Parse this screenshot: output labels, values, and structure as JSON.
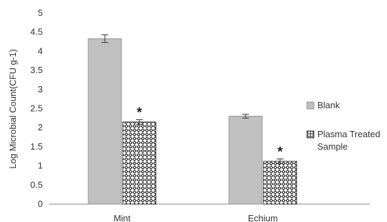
{
  "chart_data": {
    "type": "bar",
    "title": "",
    "xlabel": "",
    "ylabel": "Log Microbial Count(CFU g-1)",
    "categories": [
      "Mint",
      "Echium"
    ],
    "ylim": [
      0,
      5
    ],
    "yticks": [
      0,
      0.5,
      1,
      1.5,
      2,
      2.5,
      3,
      3.5,
      4,
      4.5,
      5
    ],
    "tick_labels": [
      "0",
      "0.5",
      "1",
      "1.5",
      "2",
      "2.5",
      "3",
      "3.5",
      "4",
      "4.5",
      "5"
    ],
    "grid": false,
    "legend_position": "right",
    "series": [
      {
        "name": "Blank",
        "values": [
          4.33,
          2.3
        ],
        "errors": [
          0.1,
          0.05
        ],
        "fill": "#c0c0c0",
        "pattern": "solid"
      },
      {
        "name": "Plasma Treated Sample",
        "values": [
          2.15,
          1.12
        ],
        "errors": [
          0.06,
          0.06
        ],
        "fill": "#ffffff",
        "pattern": "checker-lattice"
      }
    ],
    "legend_labels": [
      "Blank",
      "Plasma Treated",
      "Sample"
    ],
    "annotations": [
      "*",
      "*"
    ],
    "colors": {
      "axis": "#808080",
      "text": "#333333",
      "bar_border": "#8f8f8f",
      "pattern_dark": "#111111",
      "pattern_light": "#ffffff"
    }
  }
}
